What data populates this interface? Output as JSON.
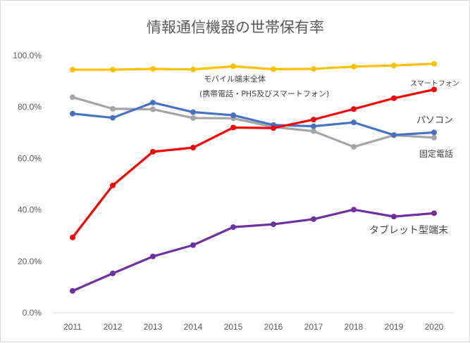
{
  "chart_data": {
    "type": "line",
    "title": "情報通信機器の世帯保有率",
    "x": [
      "2011",
      "2012",
      "2013",
      "2014",
      "2015",
      "2016",
      "2017",
      "2018",
      "2019",
      "2020"
    ],
    "y_ticks": [
      "0.0%",
      "20.0%",
      "40.0%",
      "60.0%",
      "80.0%",
      "100.0%"
    ],
    "ylim": [
      0,
      100
    ],
    "grid": false,
    "series": [
      {
        "name": "モバイル端末全体",
        "name_note": "(携帯電話・PHS及びスマートフォン)",
        "color": "#FFC000",
        "values": [
          94.5,
          94.5,
          94.8,
          94.6,
          95.8,
          94.7,
          94.8,
          95.7,
          96.1,
          96.8
        ]
      },
      {
        "name": "スマートフォン",
        "color": "#FF0000",
        "values": [
          29.3,
          49.5,
          62.6,
          64.2,
          72.0,
          71.8,
          75.1,
          79.2,
          83.4,
          86.8
        ]
      },
      {
        "name": "パソコン",
        "color": "#4472C4",
        "values": [
          77.4,
          75.8,
          81.7,
          78.0,
          76.8,
          73.0,
          72.5,
          74.0,
          69.1,
          70.1
        ]
      },
      {
        "name": "固定電話",
        "color": "#A5A5A5",
        "values": [
          83.8,
          79.3,
          79.1,
          75.7,
          75.6,
          72.2,
          70.6,
          64.5,
          69.0,
          68.1
        ]
      },
      {
        "name": "タブレット型端末",
        "color": "#7030A0",
        "values": [
          8.5,
          15.3,
          21.9,
          26.3,
          33.3,
          34.4,
          36.4,
          40.1,
          37.4,
          38.7
        ]
      }
    ]
  }
}
